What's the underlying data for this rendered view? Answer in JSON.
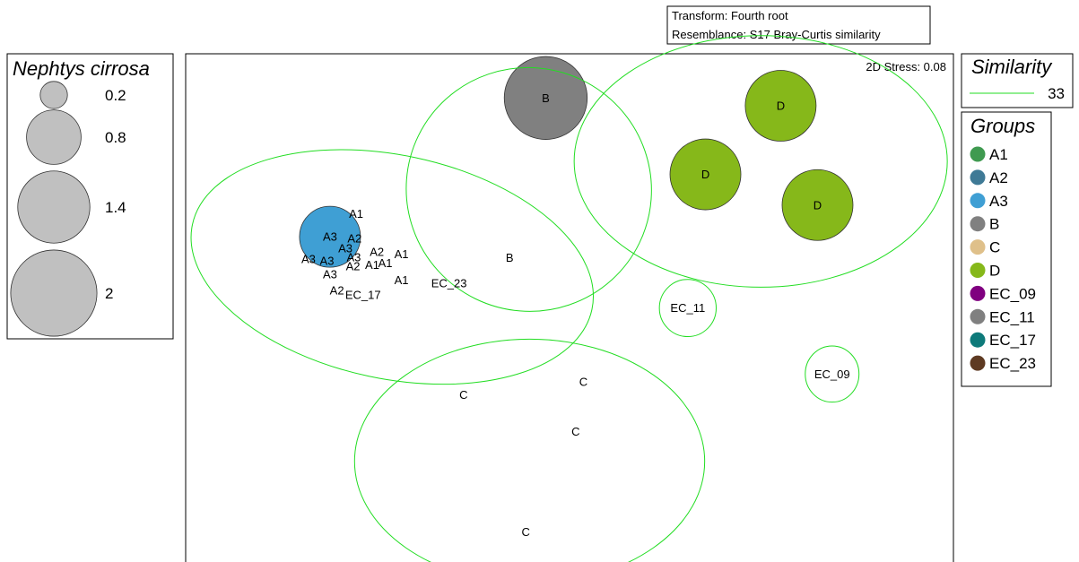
{
  "header_box": {
    "transform": "Transform: Fourth root",
    "resemblance": "Resemblance: S17 Bray-Curtis similarity"
  },
  "stress_label": "2D Stress: 0.08",
  "bubble_legend": {
    "title": "Nephtys cirrosa",
    "entries": [
      {
        "label": "0.2",
        "value": 0.2
      },
      {
        "label": "0.8",
        "value": 0.8
      },
      {
        "label": "1.4",
        "value": 1.4
      },
      {
        "label": "2",
        "value": 2.0
      }
    ],
    "bubble_color": "#c0c0c0"
  },
  "similarity_legend": {
    "title": "Similarity",
    "entries": [
      {
        "label": "33",
        "color": "#22dd22"
      }
    ]
  },
  "groups_legend": {
    "title": "Groups",
    "entries": [
      {
        "label": "A1",
        "color": "#3f9a50"
      },
      {
        "label": "A2",
        "color": "#3f7a96"
      },
      {
        "label": "A3",
        "color": "#3f9fd4"
      },
      {
        "label": "B",
        "color": "#808080"
      },
      {
        "label": "C",
        "color": "#dfc08a"
      },
      {
        "label": "D",
        "color": "#86b81a"
      },
      {
        "label": "EC_09",
        "color": "#800080"
      },
      {
        "label": "EC_11",
        "color": "#808080"
      },
      {
        "label": "EC_17",
        "color": "#0e7a7a"
      },
      {
        "label": "EC_23",
        "color": "#5e3a22"
      }
    ]
  },
  "chart_data": {
    "type": "scatter",
    "title": "",
    "xlabel": "",
    "ylabel": "",
    "xlim": [
      0,
      1
    ],
    "ylim": [
      0,
      1
    ],
    "stress": 0.08,
    "bubble_variable": "Nephtys cirrosa",
    "points": [
      {
        "label": "A1",
        "group": "A1",
        "x": 0.222,
        "y": 0.692,
        "size": 0
      },
      {
        "label": "A3",
        "group": "A3",
        "x": 0.188,
        "y": 0.648,
        "size": 1.0
      },
      {
        "label": "A2",
        "group": "A2",
        "x": 0.22,
        "y": 0.645,
        "size": 0
      },
      {
        "label": "A3",
        "group": "A3",
        "x": 0.208,
        "y": 0.626,
        "size": 0
      },
      {
        "label": "A2",
        "group": "A2",
        "x": 0.249,
        "y": 0.619,
        "size": 0
      },
      {
        "label": "A1",
        "group": "A1",
        "x": 0.281,
        "y": 0.615,
        "size": 0
      },
      {
        "label": "A3",
        "group": "A3",
        "x": 0.16,
        "y": 0.605,
        "size": 0
      },
      {
        "label": "A3",
        "group": "A3",
        "x": 0.184,
        "y": 0.602,
        "size": 0
      },
      {
        "label": "A3",
        "group": "A3",
        "x": 0.219,
        "y": 0.609,
        "size": 0
      },
      {
        "label": "A2",
        "group": "A2",
        "x": 0.218,
        "y": 0.591,
        "size": 0
      },
      {
        "label": "A1",
        "group": "A1",
        "x": 0.243,
        "y": 0.594,
        "size": 0
      },
      {
        "label": "A1",
        "group": "A1",
        "x": 0.26,
        "y": 0.597,
        "size": 0
      },
      {
        "label": "A3",
        "group": "A3",
        "x": 0.188,
        "y": 0.576,
        "size": 0
      },
      {
        "label": "A1",
        "group": "A1",
        "x": 0.281,
        "y": 0.565,
        "size": 0
      },
      {
        "label": "A2",
        "group": "A2",
        "x": 0.197,
        "y": 0.545,
        "size": 0
      },
      {
        "label": "EC_17",
        "group": "EC_17",
        "x": 0.231,
        "y": 0.536,
        "size": 0
      },
      {
        "label": "EC_23",
        "group": "EC_23",
        "x": 0.343,
        "y": 0.559,
        "size": 0
      },
      {
        "label": "B",
        "group": "B",
        "x": 0.469,
        "y": 0.915,
        "size": 1.85
      },
      {
        "label": "B",
        "group": "B",
        "x": 0.422,
        "y": 0.608,
        "size": 0
      },
      {
        "label": "D",
        "group": "D",
        "x": 0.775,
        "y": 0.9,
        "size": 1.35
      },
      {
        "label": "D",
        "group": "D",
        "x": 0.677,
        "y": 0.768,
        "size": 1.35
      },
      {
        "label": "D",
        "group": "D",
        "x": 0.823,
        "y": 0.709,
        "size": 1.35
      },
      {
        "label": "EC_11",
        "group": "EC_11",
        "x": 0.654,
        "y": 0.511,
        "size": 0
      },
      {
        "label": "EC_09",
        "group": "EC_09",
        "x": 0.842,
        "y": 0.384,
        "size": 0
      },
      {
        "label": "C",
        "group": "C",
        "x": 0.362,
        "y": 0.344,
        "size": 0
      },
      {
        "label": "C",
        "group": "C",
        "x": 0.518,
        "y": 0.369,
        "size": 0
      },
      {
        "label": "C",
        "group": "C",
        "x": 0.508,
        "y": 0.273,
        "size": 0
      },
      {
        "label": "C",
        "group": "C",
        "x": 0.443,
        "y": 0.08,
        "size": 0
      }
    ],
    "similarity_contours": [
      {
        "level": 33,
        "members": [
          "A1",
          "A2",
          "A3",
          "EC_17",
          "EC_23"
        ],
        "cx": 0.269,
        "cy": 0.59,
        "rx": 0.266,
        "ry": 0.215,
        "rotation": 12
      },
      {
        "level": 33,
        "members": [
          "B"
        ],
        "cx": 0.447,
        "cy": 0.739,
        "rx": 0.16,
        "ry": 0.234,
        "rotation": 26
      },
      {
        "level": 33,
        "members": [
          "D"
        ],
        "cx": 0.749,
        "cy": 0.793,
        "rx": 0.243,
        "ry": 0.242,
        "rotation": 0
      },
      {
        "level": 33,
        "members": [
          "EC_11"
        ],
        "cx": 0.654,
        "cy": 0.511,
        "rx": 0.037,
        "ry": 0.055,
        "rotation": 0
      },
      {
        "level": 33,
        "members": [
          "EC_09"
        ],
        "cx": 0.842,
        "cy": 0.384,
        "rx": 0.035,
        "ry": 0.054,
        "rotation": 0
      },
      {
        "level": 33,
        "members": [
          "C"
        ],
        "cx": 0.448,
        "cy": 0.216,
        "rx": 0.228,
        "ry": 0.235,
        "rotation": 0
      }
    ]
  }
}
